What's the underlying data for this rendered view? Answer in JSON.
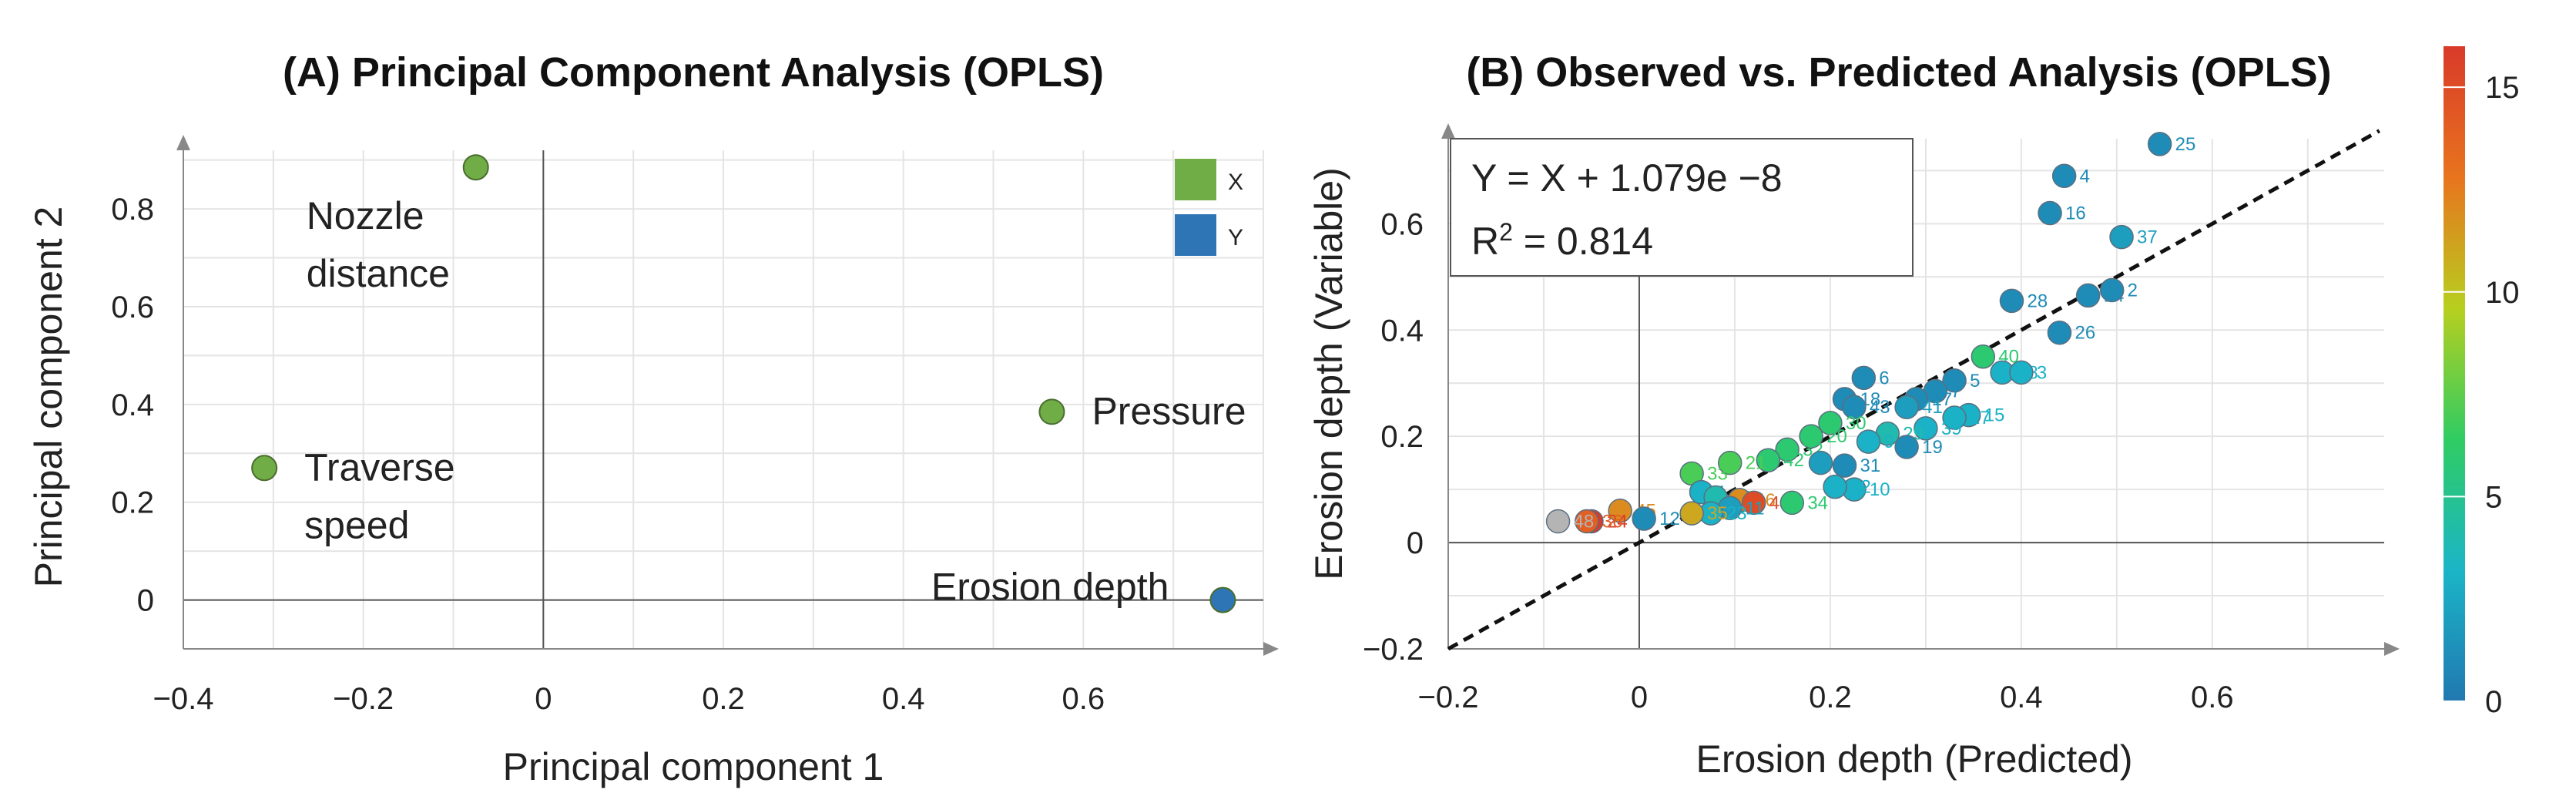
{
  "chart_data": [
    {
      "type": "scatter",
      "title": "(A) Principal Component Analysis (OPLS)",
      "xlabel": "Principal component 1",
      "ylabel": "Principal component 2",
      "xlim": [
        -0.4,
        0.8
      ],
      "ylim": [
        -0.1,
        0.92
      ],
      "xticks": [
        "−0.4",
        "−0.2",
        "0",
        "0.2",
        "0.4",
        "0.6"
      ],
      "xtick_values": [
        -0.4,
        -0.2,
        0,
        0.2,
        0.4,
        0.6
      ],
      "yticks": [
        "0",
        "0.2",
        "0.4",
        "0.6",
        "0.8"
      ],
      "ytick_values": [
        0,
        0.2,
        0.4,
        0.6,
        0.8
      ],
      "legend": [
        {
          "label": "X",
          "color": "#70ad47"
        },
        {
          "label": "Y",
          "color": "#2e75b6"
        }
      ],
      "points": [
        {
          "label_lines": [
            "Nozzle",
            "distance"
          ],
          "x": -0.075,
          "y": 0.885,
          "group": "X"
        },
        {
          "label_lines": [
            "Pressure"
          ],
          "x": 0.565,
          "y": 0.385,
          "group": "X"
        },
        {
          "label_lines": [
            "Traverse",
            "speed"
          ],
          "x": -0.31,
          "y": 0.27,
          "group": "X"
        },
        {
          "label_lines": [
            "Erosion depth"
          ],
          "x": 0.755,
          "y": 0.0,
          "group": "Y"
        }
      ]
    },
    {
      "type": "scatter",
      "title": "(B) Observed vs. Predicted Analysis (OPLS)",
      "xlabel": "Erosion depth (Predicted)",
      "ylabel": "Erosion depth (Variable)",
      "xlim": [
        -0.2,
        0.78
      ],
      "ylim": [
        -0.2,
        0.76
      ],
      "xticks": [
        "−0.2",
        "0",
        "0.2",
        "0.4",
        "0.6"
      ],
      "xtick_values": [
        -0.2,
        0,
        0.2,
        0.4,
        0.6
      ],
      "yticks": [
        "−0.2",
        "0",
        "0.2",
        "0.4",
        "0.6"
      ],
      "ytick_values": [
        -0.2,
        0,
        0.2,
        0.4,
        0.6
      ],
      "equation": "Y = X + 1.079e −8",
      "r2_prefix": "R",
      "r2_sup": "2",
      "r2_suffix": " = 0.814",
      "fit_line": {
        "slope": 1,
        "intercept": 0
      },
      "colorbar": {
        "min": 0,
        "max": 16,
        "ticks": [
          "0",
          "5",
          "10",
          "15"
        ],
        "tick_values": [
          0,
          5,
          10,
          15
        ],
        "colors": [
          "#2178b0",
          "#1bb5c7",
          "#2fcc63",
          "#b7cf1f",
          "#e8741e",
          "#d93a2a"
        ]
      },
      "points": [
        {
          "id": "25",
          "x": 0.545,
          "y": 0.75,
          "c": 1
        },
        {
          "id": "4",
          "x": 0.445,
          "y": 0.69,
          "c": 1
        },
        {
          "id": "16",
          "x": 0.43,
          "y": 0.62,
          "c": 1
        },
        {
          "id": "37",
          "x": 0.505,
          "y": 0.575,
          "c": 2
        },
        {
          "id": "28",
          "x": 0.39,
          "y": 0.455,
          "c": 1
        },
        {
          "id": "14",
          "x": 0.47,
          "y": 0.465,
          "c": 1
        },
        {
          "id": "2",
          "x": 0.495,
          "y": 0.475,
          "c": 1
        },
        {
          "id": "26",
          "x": 0.44,
          "y": 0.395,
          "c": 1
        },
        {
          "id": "40",
          "x": 0.36,
          "y": 0.35,
          "c": 6
        },
        {
          "id": "38",
          "x": 0.38,
          "y": 0.32,
          "c": 3
        },
        {
          "id": "3",
          "x": 0.4,
          "y": 0.32,
          "c": 3
        },
        {
          "id": "5",
          "x": 0.33,
          "y": 0.305,
          "c": 1
        },
        {
          "id": "6",
          "x": 0.235,
          "y": 0.31,
          "c": 1
        },
        {
          "id": "7",
          "x": 0.31,
          "y": 0.285,
          "c": 1
        },
        {
          "id": "17",
          "x": 0.29,
          "y": 0.27,
          "c": 1
        },
        {
          "id": "18",
          "x": 0.215,
          "y": 0.27,
          "c": 1
        },
        {
          "id": "43",
          "x": 0.225,
          "y": 0.255,
          "c": 1
        },
        {
          "id": "41",
          "x": 0.28,
          "y": 0.255,
          "c": 2
        },
        {
          "id": "15",
          "x": 0.345,
          "y": 0.24,
          "c": 3
        },
        {
          "id": "27",
          "x": 0.33,
          "y": 0.235,
          "c": 3
        },
        {
          "id": "30",
          "x": 0.2,
          "y": 0.225,
          "c": 6
        },
        {
          "id": "20",
          "x": 0.18,
          "y": 0.2,
          "c": 6
        },
        {
          "id": "39",
          "x": 0.3,
          "y": 0.215,
          "c": 3
        },
        {
          "id": "29",
          "x": 0.26,
          "y": 0.205,
          "c": 4
        },
        {
          "id": "9",
          "x": 0.24,
          "y": 0.19,
          "c": 3
        },
        {
          "id": "32",
          "x": 0.155,
          "y": 0.175,
          "c": 6
        },
        {
          "id": "42",
          "x": 0.135,
          "y": 0.155,
          "c": 6
        },
        {
          "id": "21",
          "x": 0.095,
          "y": 0.15,
          "c": 7
        },
        {
          "id": "33",
          "x": 0.055,
          "y": 0.13,
          "c": 7
        },
        {
          "id": "19",
          "x": 0.28,
          "y": 0.18,
          "c": 1
        },
        {
          "id": "8",
          "x": 0.19,
          "y": 0.15,
          "c": 2
        },
        {
          "id": "31",
          "x": 0.215,
          "y": 0.145,
          "c": 1
        },
        {
          "id": "10",
          "x": 0.225,
          "y": 0.1,
          "c": 3
        },
        {
          "id": "22",
          "x": 0.205,
          "y": 0.105,
          "c": 3
        },
        {
          "id": "45",
          "x": -0.02,
          "y": 0.06,
          "c": 12
        },
        {
          "id": "1",
          "x": 0.065,
          "y": 0.095,
          "c": 3
        },
        {
          "id": "13",
          "x": 0.08,
          "y": 0.085,
          "c": 4
        },
        {
          "id": "46",
          "x": 0.105,
          "y": 0.08,
          "c": 12
        },
        {
          "id": "44",
          "x": 0.12,
          "y": 0.075,
          "c": 15
        },
        {
          "id": "34",
          "x": 0.16,
          "y": 0.075,
          "c": 6
        },
        {
          "id": "11",
          "x": 0.095,
          "y": 0.065,
          "c": 2
        },
        {
          "id": "23",
          "x": 0.075,
          "y": 0.055,
          "c": 3
        },
        {
          "id": "35",
          "x": 0.055,
          "y": 0.055,
          "c": 11
        },
        {
          "id": "12",
          "x": 0.005,
          "y": 0.045,
          "c": 1
        },
        {
          "id": "24",
          "x": -0.05,
          "y": 0.04,
          "c": 16
        },
        {
          "id": "36",
          "x": -0.055,
          "y": 0.04,
          "c": 14
        },
        {
          "id": "48",
          "x": -0.085,
          "y": 0.04,
          "c": -1
        }
      ]
    }
  ]
}
